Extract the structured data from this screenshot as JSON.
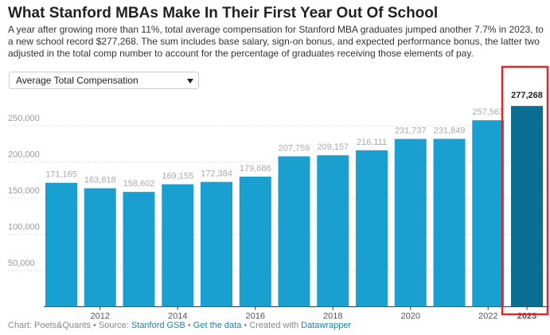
{
  "chart_data": {
    "type": "bar",
    "title": "What Stanford MBAs Make In Their First Year Out Of School",
    "subtitle": "A year after growing more than 11%, total average compensation for Stanford MBA graduates jumped another 7.7% in 2023, to a new school record $277,268. The sum includes base salary, sign-on bonus, and expected performance bonus, the latter two adjusted in the total comp number to account for the percentage of graduates receiving those elements of pay.",
    "categories": [
      null,
      "2012",
      null,
      "2014",
      null,
      "2016",
      null,
      "2018",
      null,
      "2020",
      null,
      "2022",
      "2023"
    ],
    "values": [
      171165,
      163618,
      158602,
      169155,
      172384,
      179686,
      207759,
      209157,
      216111,
      231737,
      231849,
      257563,
      277268
    ],
    "value_labels": [
      "171,165",
      "163,618",
      "158,602",
      "169,155",
      "172,384",
      "179,686",
      "207,759",
      "209,157",
      "216,111",
      "231,737",
      "231,849",
      "257,563",
      "277,268"
    ],
    "color": "#1a9fd1",
    "highlight": {
      "category": "2023",
      "color": "#0b6e93"
    },
    "ylim": [
      0,
      290000
    ],
    "yticks": [
      {
        "value": 50000,
        "label": "50,000"
      },
      {
        "value": 100000,
        "label": "100,000"
      },
      {
        "value": 150000,
        "label": "150,000"
      },
      {
        "value": 200000,
        "label": "200,000"
      },
      {
        "value": 250000,
        "label": "250,000"
      }
    ],
    "grid": true
  },
  "controls": {
    "selected": "Average Total Compensation"
  },
  "footer": {
    "credit": "Chart: Poets&Quants",
    "separator": "•",
    "source_prefix": "Source:",
    "source": "Stanford GSB",
    "data_link": "Get the data",
    "created_prefix": "Created with",
    "tool": "Datawrapper"
  }
}
